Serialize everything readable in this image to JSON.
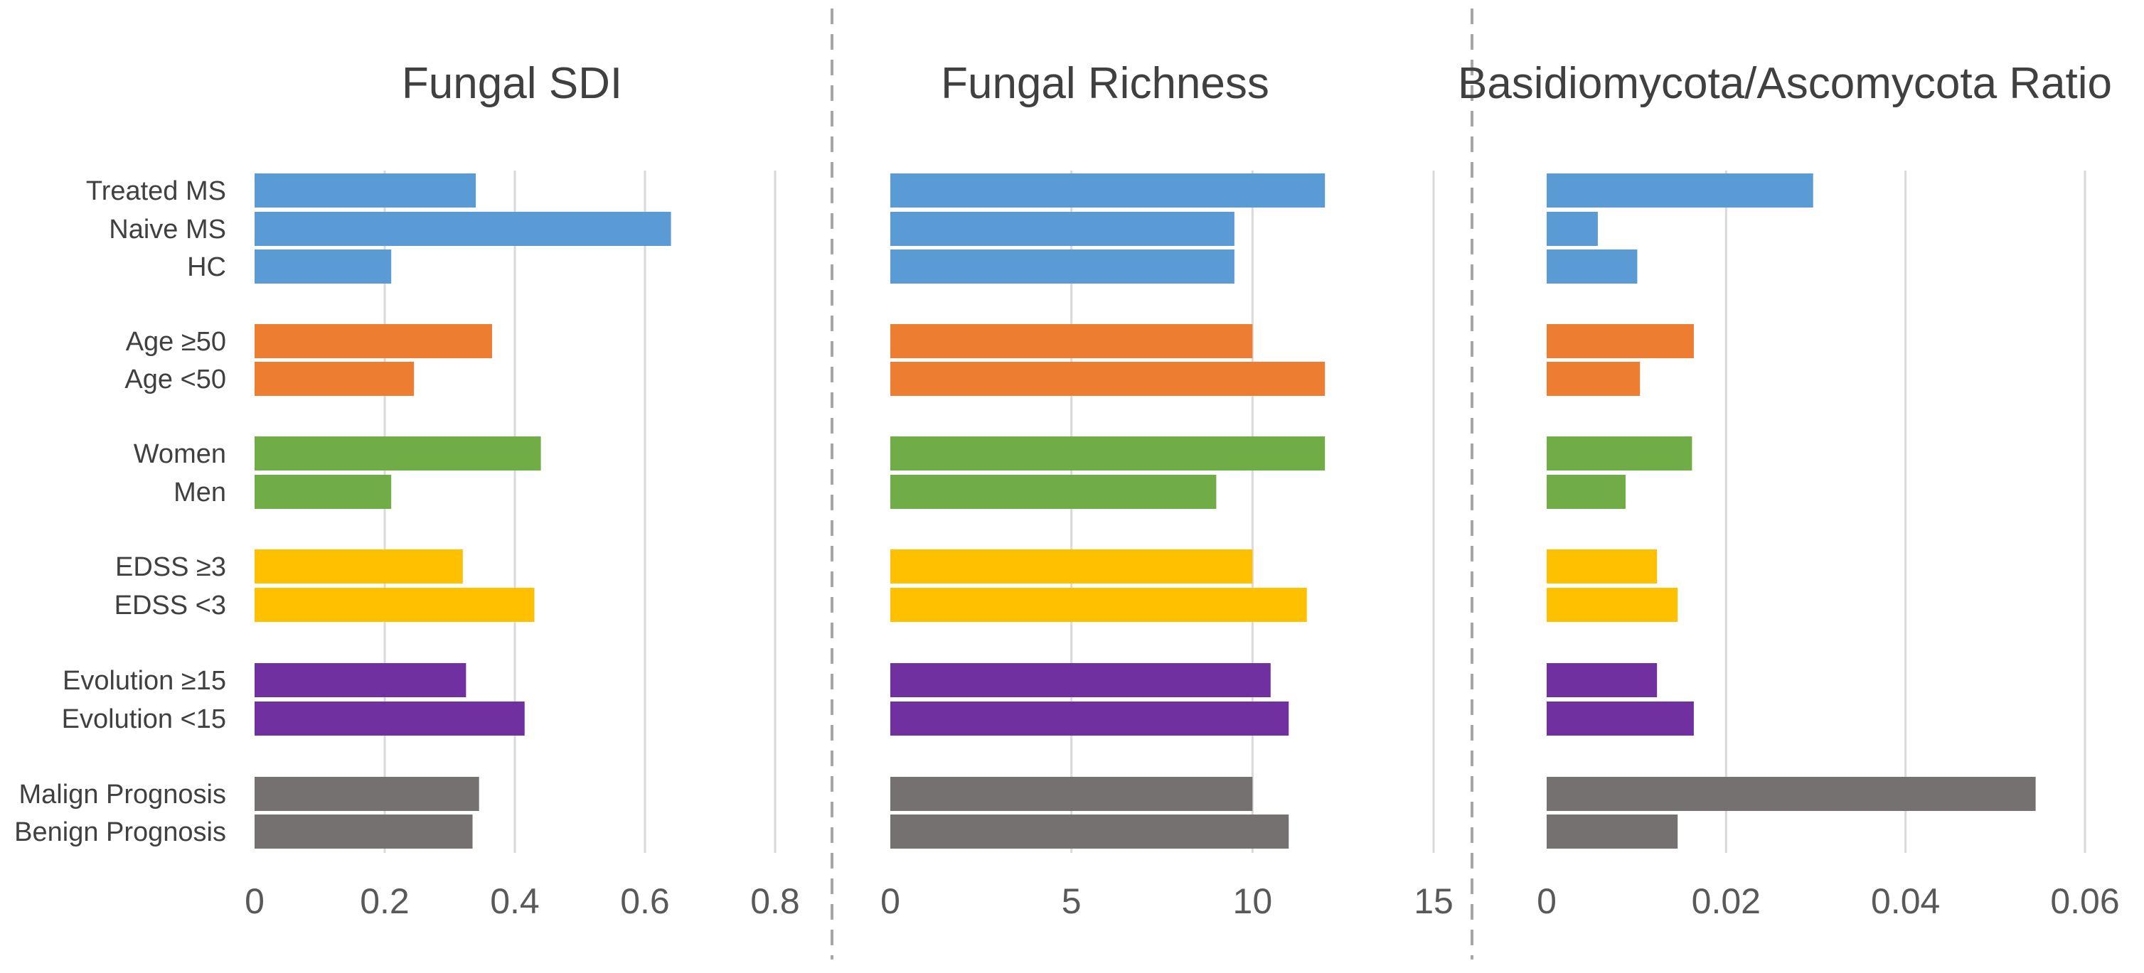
{
  "colors": {
    "ms_group": "#5b9bd5",
    "age": "#ed7d31",
    "sex": "#70ad47",
    "edss": "#ffc000",
    "evolution": "#7030a0",
    "prognosis": "#767171",
    "gridline": "#d9d9d9",
    "text": "#404040"
  },
  "chart_data": [
    {
      "type": "bar",
      "orientation": "horizontal",
      "title": "Fungal SDI",
      "xlim": [
        0,
        0.8
      ],
      "ticks": [
        "0",
        "0.2",
        "0.4",
        "0.6",
        "0.8"
      ],
      "tick_values": [
        0,
        0.2,
        0.4,
        0.6,
        0.8
      ],
      "grid": true,
      "categories": [
        "Treated MS",
        "Naive MS",
        "HC",
        "Age ≥50",
        "Age <50",
        "Women",
        "Men",
        "EDSS ≥3",
        "EDSS <3",
        "Evolution ≥15",
        "Evolution <15",
        "Malign Prognosis",
        "Benign Prognosis"
      ],
      "groups": [
        "ms_group",
        "ms_group",
        "ms_group",
        "age",
        "age",
        "sex",
        "sex",
        "edss",
        "edss",
        "evolution",
        "evolution",
        "prognosis",
        "prognosis"
      ],
      "values": [
        0.34,
        0.64,
        0.21,
        0.365,
        0.245,
        0.44,
        0.21,
        0.32,
        0.43,
        0.325,
        0.415,
        0.345,
        0.335
      ]
    },
    {
      "type": "bar",
      "orientation": "horizontal",
      "title": "Fungal Richness",
      "xlim": [
        0,
        15
      ],
      "ticks": [
        "0",
        "5",
        "10",
        "15"
      ],
      "tick_values": [
        0,
        5,
        10,
        15
      ],
      "grid": true,
      "categories": [
        "Treated MS",
        "Naive MS",
        "HC",
        "Age ≥50",
        "Age <50",
        "Women",
        "Men",
        "EDSS ≥3",
        "EDSS <3",
        "Evolution ≥15",
        "Evolution <15",
        "Malign Prognosis",
        "Benign Prognosis"
      ],
      "groups": [
        "ms_group",
        "ms_group",
        "ms_group",
        "age",
        "age",
        "sex",
        "sex",
        "edss",
        "edss",
        "evolution",
        "evolution",
        "prognosis",
        "prognosis"
      ],
      "values": [
        12,
        9.5,
        9.5,
        10,
        12,
        12,
        9,
        10,
        11.5,
        10.5,
        11,
        10,
        11
      ]
    },
    {
      "type": "bar",
      "orientation": "horizontal",
      "title": "Basidiomycota/Ascomycota Ratio",
      "xlim": [
        0,
        0.06
      ],
      "ticks": [
        "0",
        "0.02",
        "0.04",
        "0.06"
      ],
      "tick_values": [
        0,
        0.02,
        0.04,
        0.06
      ],
      "grid": true,
      "categories": [
        "Treated MS",
        "Naive MS",
        "HC",
        "Age ≥50",
        "Age <50",
        "Women",
        "Men",
        "EDSS ≥3",
        "EDSS <3",
        "Evolution ≥15",
        "Evolution <15",
        "Malign Prognosis",
        "Benign Prognosis"
      ],
      "groups": [
        "ms_group",
        "ms_group",
        "ms_group",
        "age",
        "age",
        "sex",
        "sex",
        "edss",
        "edss",
        "evolution",
        "evolution",
        "prognosis",
        "prognosis"
      ],
      "values": [
        0.0297,
        0.0057,
        0.0101,
        0.0164,
        0.0104,
        0.0162,
        0.0088,
        0.0123,
        0.0146,
        0.0123,
        0.0164,
        0.0545,
        0.0146
      ]
    }
  ]
}
